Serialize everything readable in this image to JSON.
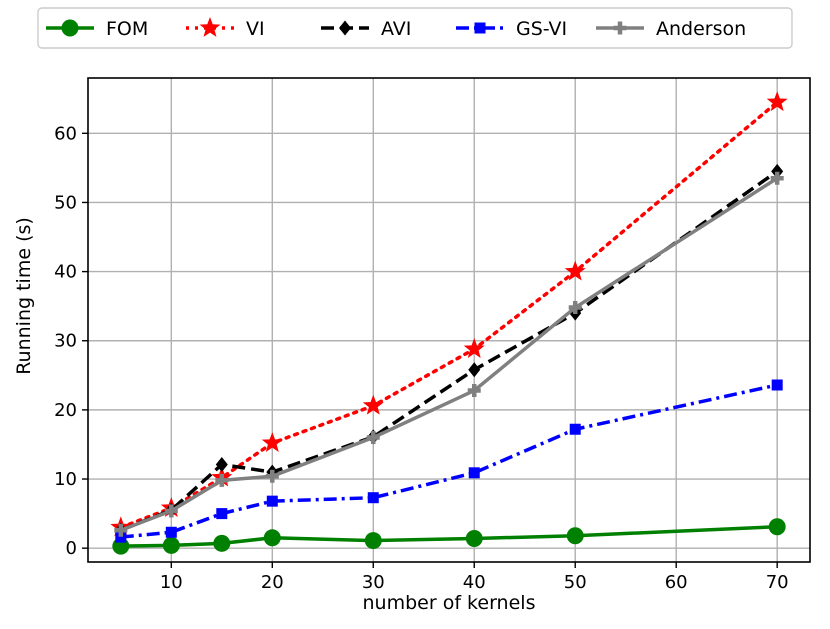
{
  "chart_data": {
    "type": "line",
    "title": "",
    "xlabel": "number of kernels",
    "ylabel": "Running time (s)",
    "xlim": [
      1.75,
      73.25
    ],
    "ylim": [
      -2.0,
      68.0
    ],
    "xticks": [
      10,
      20,
      30,
      40,
      50,
      60,
      70
    ],
    "yticks": [
      0,
      10,
      20,
      30,
      40,
      50,
      60
    ],
    "grid": true,
    "legend_position": "top, outside plot, single row",
    "series": [
      {
        "name": "FOM",
        "color": "#008000",
        "line": "solid",
        "marker": "circle",
        "x": [
          5,
          10,
          15,
          20,
          30,
          40,
          50,
          70
        ],
        "y": [
          0.3,
          0.4,
          0.7,
          1.5,
          1.1,
          1.4,
          1.8,
          3.1
        ]
      },
      {
        "name": "VI",
        "color": "#ff0000",
        "line": "dotted",
        "marker": "star",
        "x": [
          5,
          10,
          15,
          20,
          30,
          40,
          50,
          70
        ],
        "y": [
          3.0,
          5.8,
          10.2,
          15.2,
          20.6,
          28.8,
          40.0,
          64.5
        ]
      },
      {
        "name": "AVI",
        "color": "#000000",
        "line": "dashed",
        "marker": "diamond",
        "x": [
          5,
          10,
          15,
          20,
          30,
          40,
          50,
          70
        ],
        "y": [
          2.6,
          5.5,
          12.1,
          11.0,
          16.1,
          25.8,
          34.0,
          54.5
        ]
      },
      {
        "name": "GS-VI",
        "color": "#0000ff",
        "line": "dashdot",
        "marker": "square",
        "x": [
          5,
          10,
          15,
          20,
          30,
          40,
          50,
          70
        ],
        "y": [
          1.6,
          2.3,
          5.0,
          6.8,
          7.3,
          10.9,
          17.2,
          23.6
        ]
      },
      {
        "name": "Anderson",
        "color": "#808080",
        "line": "solid",
        "marker": "plus",
        "x": [
          5,
          10,
          15,
          20,
          30,
          40,
          50,
          70
        ],
        "y": [
          2.6,
          5.4,
          9.8,
          10.4,
          16.0,
          22.8,
          34.8,
          53.5
        ]
      }
    ]
  }
}
